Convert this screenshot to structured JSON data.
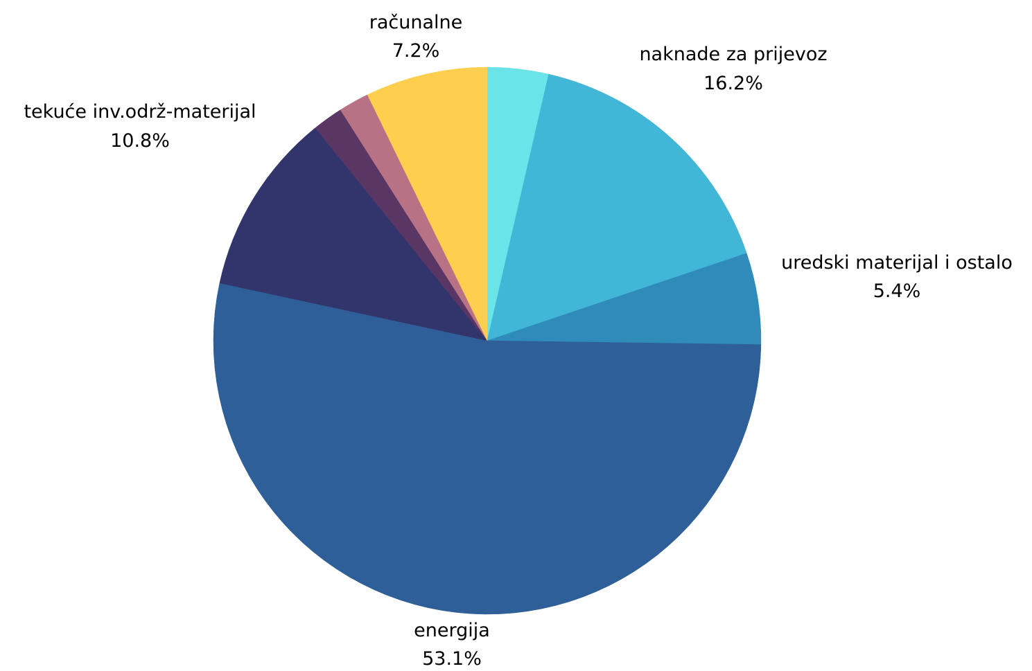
{
  "chart_data": {
    "type": "pie",
    "title": "",
    "start_angle_deg": 0,
    "direction": "clockwise",
    "legend": "none",
    "slices": [
      {
        "label": "",
        "value": 3.6,
        "percent_label": "",
        "color": "#6ae4e8"
      },
      {
        "label": "naknade za prijevoz",
        "value": 16.2,
        "percent_label": "16.2%",
        "color": "#42b6d6"
      },
      {
        "label": "uredski materijal i ostalo",
        "value": 5.4,
        "percent_label": "5.4%",
        "color": "#2e8bba"
      },
      {
        "label": "energija",
        "value": 53.1,
        "percent_label": "53.1%",
        "color": "#2f5f98"
      },
      {
        "label": "tekuće inv.održ-materijal",
        "value": 10.8,
        "percent_label": "10.8%",
        "color": "#32356b"
      },
      {
        "label": "",
        "value": 1.8,
        "percent_label": "",
        "color": "#5a3665"
      },
      {
        "label": "",
        "value": 1.8,
        "percent_label": "",
        "color": "#b87285"
      },
      {
        "label": "računalne",
        "value": 7.2,
        "percent_label": "7.2%",
        "color": "#fecf4f"
      }
    ]
  }
}
